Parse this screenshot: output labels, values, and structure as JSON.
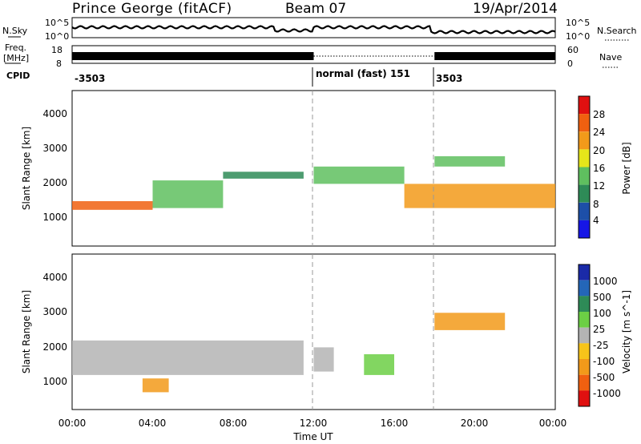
{
  "header": {
    "site": "Prince George (fitACF)",
    "beam": "Beam 07",
    "date": "19/Apr/2014"
  },
  "top_strip": {
    "left_label": "N.Sky",
    "right_label": "N.Search",
    "ticks": [
      "10^5",
      "10^0"
    ]
  },
  "freq_strip": {
    "left_label_1": "Freq.",
    "left_label_2": "[MHz]",
    "left_ticks": [
      "18",
      "8"
    ],
    "right_label": "Nave",
    "right_ticks": [
      "60",
      "0"
    ]
  },
  "cpid": {
    "label": "CPID",
    "segments": [
      "-3503",
      "normal (fast) 151",
      "3503"
    ]
  },
  "power_panel": {
    "ylabel": "Slant Range [km]",
    "yticks": [
      "1000",
      "2000",
      "3000",
      "4000"
    ],
    "colorbar_label": "Power [dB]",
    "colorbar_ticks": [
      "4",
      "8",
      "12",
      "16",
      "20",
      "24",
      "28"
    ],
    "colors": [
      "#1616e6",
      "#1d4fa8",
      "#2e8b57",
      "#5fbf5f",
      "#e6e61a",
      "#f29a1a",
      "#f06010",
      "#e01010"
    ]
  },
  "velocity_panel": {
    "ylabel": "Slant Range [km]",
    "yticks": [
      "1000",
      "2000",
      "3000",
      "4000"
    ],
    "colorbar_label": "Velocity [m s^-1]",
    "colorbar_ticks": [
      "1000",
      "500",
      "100",
      "25",
      "-25",
      "-100",
      "-500",
      "-1000"
    ],
    "colors": [
      "#1a2aa8",
      "#2466b8",
      "#2e8b57",
      "#6ccf45",
      "#b4b4b4",
      "#f7c41a",
      "#f29a1a",
      "#f06010",
      "#e01010"
    ]
  },
  "xaxis": {
    "ticks": [
      "00:00",
      "04:00",
      "08:00",
      "12:00",
      "16:00",
      "20:00",
      "00:00"
    ],
    "label": "Time UT"
  },
  "chart_data": {
    "type": "heatmap",
    "x_range_hours": [
      0,
      24
    ],
    "y_range_km": [
      0,
      4500
    ],
    "mode_change_times": [
      "12:00",
      "18:00"
    ],
    "grid": false,
    "panels": [
      {
        "name": "Power",
        "units": "dB",
        "color_range": [
          0,
          30
        ],
        "bands": [
          {
            "start_hour": 0.0,
            "end_hour": 4.0,
            "range_km": [
              1050,
              1300
            ],
            "value": 26
          },
          {
            "start_hour": 4.0,
            "end_hour": 7.5,
            "range_km": [
              1100,
              1900
            ],
            "value": 14
          },
          {
            "start_hour": 7.5,
            "end_hour": 11.5,
            "range_km": [
              1950,
              2150
            ],
            "value": 10
          },
          {
            "start_hour": 12.0,
            "end_hour": 16.5,
            "range_km": [
              1800,
              2300
            ],
            "value": 12
          },
          {
            "start_hour": 16.5,
            "end_hour": 24.0,
            "range_km": [
              1100,
              1800
            ],
            "value": 20
          },
          {
            "start_hour": 18.0,
            "end_hour": 21.5,
            "range_km": [
              2300,
              2600
            ],
            "value": 12
          }
        ]
      },
      {
        "name": "Velocity",
        "units": "m s^-1",
        "color_range": [
          -1000,
          1000
        ],
        "bands": [
          {
            "start_hour": 0.0,
            "end_hour": 11.5,
            "range_km": [
              1000,
              2000
            ],
            "value": 0
          },
          {
            "start_hour": 3.5,
            "end_hour": 4.8,
            "range_km": [
              500,
              900
            ],
            "value": -400
          },
          {
            "start_hour": 12.0,
            "end_hour": 13.0,
            "range_km": [
              1100,
              1800
            ],
            "value": 80
          },
          {
            "start_hour": 14.5,
            "end_hour": 16.0,
            "range_km": [
              1000,
              1600
            ],
            "value": 200
          },
          {
            "start_hour": 18.0,
            "end_hour": 21.5,
            "range_km": [
              2300,
              2800
            ],
            "value": -600
          }
        ]
      }
    ]
  }
}
